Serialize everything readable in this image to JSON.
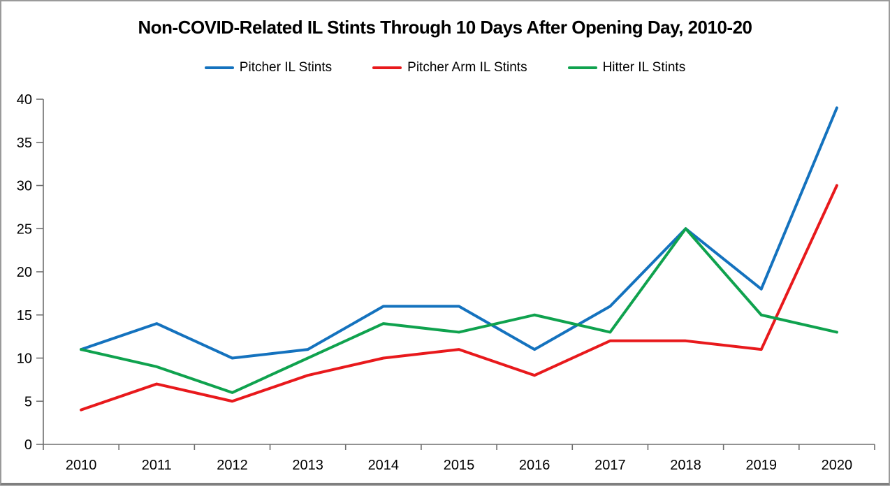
{
  "chart_data": {
    "type": "line",
    "title": "Non-COVID-Related IL Stints Through 10 Days After Opening Day, 2010-20",
    "categories": [
      "2010",
      "2011",
      "2012",
      "2013",
      "2014",
      "2015",
      "2016",
      "2017",
      "2018",
      "2019",
      "2020"
    ],
    "series": [
      {
        "name": "Pitcher IL Stints",
        "color": "#1472be",
        "values": [
          11,
          14,
          10,
          11,
          16,
          16,
          11,
          16,
          25,
          18,
          39
        ]
      },
      {
        "name": "Pitcher Arm IL Stints",
        "color": "#e8191c",
        "values": [
          4,
          7,
          5,
          8,
          10,
          11,
          8,
          12,
          12,
          11,
          30
        ]
      },
      {
        "name": "Hitter IL Stints",
        "color": "#0fa24e",
        "values": [
          11,
          9,
          6,
          10,
          14,
          13,
          15,
          13,
          25,
          15,
          13
        ]
      }
    ],
    "xlabel": "",
    "ylabel": "",
    "ylim": [
      0,
      40
    ],
    "ytick_step": 5,
    "yticks": [
      0,
      5,
      10,
      15,
      20,
      25,
      30,
      35,
      40
    ],
    "grid": false,
    "legend_position": "top",
    "axis_color": "#6e6e6e",
    "text_color": "#000000"
  }
}
